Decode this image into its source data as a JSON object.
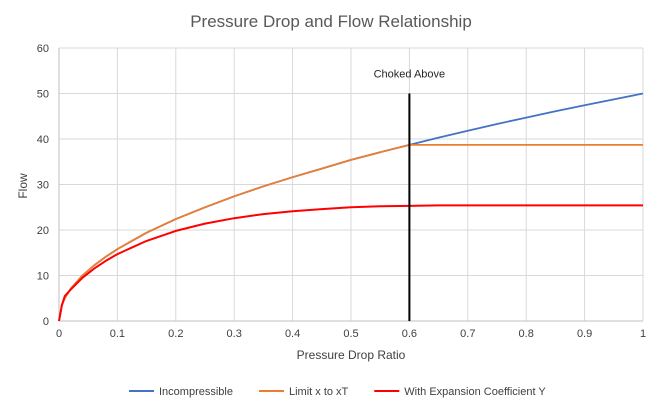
{
  "chart_data": {
    "type": "line",
    "title": "Pressure Drop and Flow Relationship",
    "xlabel": "Pressure Drop Ratio",
    "ylabel": "Flow",
    "xlim": [
      0,
      1
    ],
    "ylim": [
      0,
      60
    ],
    "xticks": [
      "0",
      "0.1",
      "0.2",
      "0.3",
      "0.4",
      "0.5",
      "0.6",
      "0.7",
      "0.8",
      "0.9",
      "1"
    ],
    "yticks": [
      "0",
      "10",
      "20",
      "30",
      "40",
      "50",
      "60"
    ],
    "grid": true,
    "legend_position": "bottom",
    "x": [
      0,
      0.005,
      0.01,
      0.02,
      0.04,
      0.06,
      0.08,
      0.1,
      0.15,
      0.2,
      0.25,
      0.3,
      0.35,
      0.4,
      0.45,
      0.5,
      0.55,
      0.6,
      0.65,
      0.7,
      0.75,
      0.8,
      0.85,
      0.9,
      0.95,
      1
    ],
    "series": [
      {
        "name": "Incompressible",
        "color": "#4472C4",
        "values": [
          0,
          3.5,
          5.0,
          7.1,
          10.0,
          12.2,
          14.1,
          15.8,
          19.4,
          22.4,
          25.0,
          27.4,
          29.6,
          31.6,
          33.5,
          35.4,
          37.1,
          38.7,
          40.3,
          41.8,
          43.3,
          44.7,
          46.1,
          47.4,
          48.7,
          50.0
        ]
      },
      {
        "name": "Limit x to xT",
        "color": "#ED7D31",
        "values": [
          0,
          3.5,
          5.0,
          7.1,
          10.0,
          12.2,
          14.1,
          15.8,
          19.4,
          22.4,
          25.0,
          27.4,
          29.6,
          31.6,
          33.5,
          35.4,
          37.1,
          38.7,
          38.7,
          38.7,
          38.7,
          38.7,
          38.7,
          38.7,
          38.7,
          38.7
        ]
      },
      {
        "name": "With Expansion Coefficient Y",
        "color": "#FF0000",
        "values": [
          0,
          3.5,
          5.5,
          6.9,
          9.5,
          11.5,
          13.2,
          14.7,
          17.6,
          19.8,
          21.4,
          22.6,
          23.5,
          24.1,
          24.6,
          25.0,
          25.2,
          25.3,
          25.4,
          25.4,
          25.4,
          25.4,
          25.4,
          25.4,
          25.4,
          25.4
        ]
      }
    ],
    "annotations": [
      {
        "text": "Choked Above",
        "x": 0.6,
        "y_top": 50,
        "y_bottom": 0
      }
    ]
  }
}
